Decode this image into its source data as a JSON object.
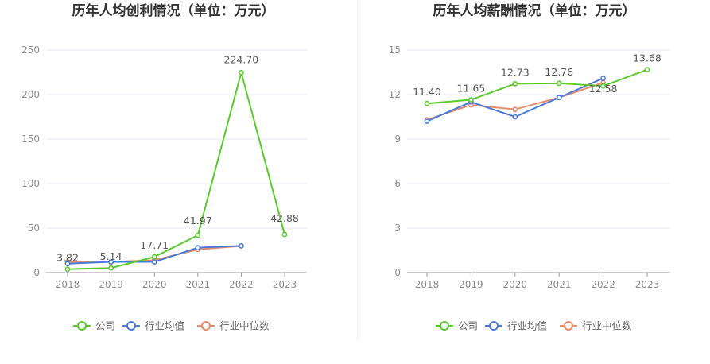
{
  "colors": {
    "company": "#5cc92e",
    "industry_avg": "#4b7bd8",
    "industry_median": "#e98a6a",
    "grid": "#e6e9f2",
    "axis": "#999999"
  },
  "legend": {
    "company": "公司",
    "industry_avg": "行业均值",
    "industry_median": "行业中位数"
  },
  "chart_data": [
    {
      "type": "line",
      "title": "历年人均创利情况（单位：万元）",
      "categories": [
        "2018",
        "2019",
        "2020",
        "2021",
        "2022",
        "2023"
      ],
      "ylim": [
        0,
        250
      ],
      "yticks": [
        0,
        50,
        100,
        150,
        200,
        250
      ],
      "grid": true,
      "legend_position": "bottom",
      "series": [
        {
          "key": "company",
          "name": "公司",
          "values": [
            3.82,
            5.14,
            17.71,
            41.97,
            224.7,
            42.88
          ],
          "labels": [
            "3.82",
            "5.14",
            "17.71",
            "41.97",
            "224.70",
            "42.88"
          ]
        },
        {
          "key": "industry_avg",
          "name": "行业均值",
          "values": [
            10,
            12,
            12,
            28,
            30,
            null
          ]
        },
        {
          "key": "industry_median",
          "name": "行业中位数",
          "values": [
            12,
            12,
            14,
            26,
            30,
            null
          ]
        }
      ]
    },
    {
      "type": "line",
      "title": "历年人均薪酬情况（单位：万元）",
      "categories": [
        "2018",
        "2019",
        "2020",
        "2021",
        "2022",
        "2023"
      ],
      "ylim": [
        0,
        15
      ],
      "yticks": [
        0,
        3,
        6,
        9,
        12,
        15
      ],
      "grid": true,
      "legend_position": "bottom",
      "series": [
        {
          "key": "company",
          "name": "公司",
          "values": [
            11.4,
            11.65,
            12.73,
            12.76,
            12.58,
            13.68
          ],
          "labels": [
            "11.40",
            "11.65",
            "12.73",
            "12.76",
            "12.58",
            "13.68"
          ]
        },
        {
          "key": "industry_avg",
          "name": "行业均值",
          "values": [
            10.2,
            11.5,
            10.5,
            11.8,
            13.1,
            null
          ]
        },
        {
          "key": "industry_median",
          "name": "行业中位数",
          "values": [
            10.3,
            11.3,
            11.0,
            11.8,
            12.8,
            null
          ]
        }
      ]
    }
  ]
}
